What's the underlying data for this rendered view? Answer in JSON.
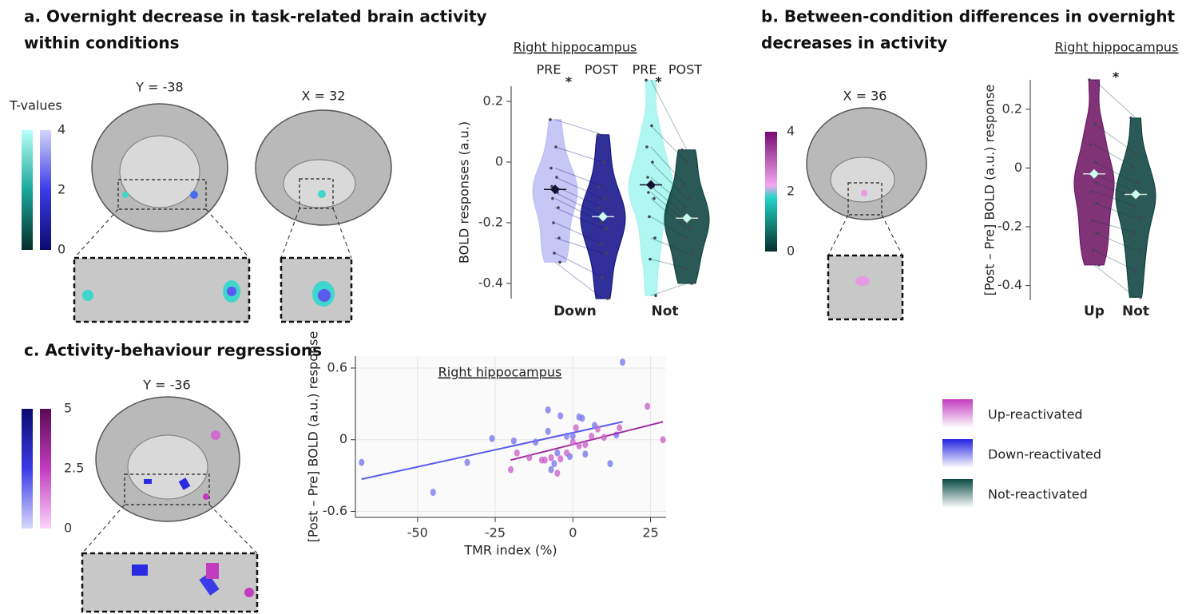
{
  "panels": {
    "a": {
      "title": [
        "a. Overnight decrease in task-related brain activity",
        "within conditions"
      ],
      "slices": [
        "Y = -38",
        "X = 32"
      ],
      "colorbar": {
        "label": "T-values",
        "range": [
          0,
          4
        ],
        "ticks": [
          0,
          2,
          4
        ]
      }
    },
    "b": {
      "title": [
        "b. Between-condition differences in overnight",
        "decreases in activity"
      ],
      "slices": [
        "X = 36"
      ],
      "colorbar": {
        "range": [
          0,
          4
        ],
        "ticks": [
          0,
          2,
          4
        ]
      }
    },
    "c": {
      "title": [
        "c. Activity-behaviour regressions"
      ],
      "slices": [
        "Y = -36"
      ],
      "colorbar": {
        "range": [
          0,
          5
        ],
        "ticks": [
          0,
          2.5,
          5
        ]
      }
    }
  },
  "legend": [
    {
      "name": "Up-reactivated",
      "color": "#c23cc0"
    },
    {
      "name": "Down-reactivated",
      "color": "#2323e0"
    },
    {
      "name": "Not-reactivated",
      "color": "#0a4a44"
    }
  ],
  "chart_data": [
    {
      "type": "violin",
      "subtitle": "Right hippocampus",
      "y_label": "BOLD responses (a.u.)",
      "ylim": [
        -0.45,
        0.25
      ],
      "yticks": [
        -0.4,
        -0.2,
        0,
        0.2
      ],
      "groups": [
        {
          "category": "Down",
          "significance": "*",
          "series": [
            {
              "name": "PRE",
              "color": "#bdbdf3",
              "mean": -0.09,
              "values": [
                0.14,
                0.05,
                -0.02,
                -0.05,
                -0.08,
                -0.1,
                -0.12,
                -0.15,
                -0.2,
                -0.25,
                -0.3,
                -0.33
              ]
            },
            {
              "name": "POST",
              "color": "#0c0c86",
              "mean": -0.18,
              "values": [
                0.09,
                0.0,
                -0.08,
                -0.12,
                -0.15,
                -0.18,
                -0.2,
                -0.22,
                -0.27,
                -0.3,
                -0.38,
                -0.45
              ]
            }
          ]
        },
        {
          "category": "Not",
          "significance": "*",
          "series": [
            {
              "name": "PRE",
              "color": "#a2f4ee",
              "mean": -0.075,
              "values": [
                0.27,
                0.12,
                0.05,
                0.0,
                -0.05,
                -0.08,
                -0.1,
                -0.12,
                -0.18,
                -0.25,
                -0.32,
                -0.44
              ]
            },
            {
              "name": "POST",
              "color": "#063c37",
              "mean": -0.185,
              "values": [
                0.04,
                0.0,
                -0.08,
                -0.12,
                -0.15,
                -0.18,
                -0.2,
                -0.22,
                -0.25,
                -0.3,
                -0.35,
                -0.4
              ]
            }
          ]
        }
      ]
    },
    {
      "type": "violin",
      "subtitle": "Right hippocampus",
      "y_label": "[Post – Pre] BOLD (a.u.) response",
      "ylim": [
        -0.45,
        0.3
      ],
      "yticks": [
        -0.4,
        -0.2,
        0,
        0.2
      ],
      "groups": [
        {
          "category": "Up",
          "significance": "*",
          "series": [
            {
              "color": "#6a0f5f",
              "mean": -0.02,
              "values": [
                0.3,
                0.15,
                0.08,
                0.02,
                -0.02,
                -0.05,
                -0.08,
                -0.12,
                -0.18,
                -0.22,
                -0.28,
                -0.33
              ]
            }
          ]
        },
        {
          "category": "Not",
          "series": [
            {
              "color": "#063c37",
              "mean": -0.09,
              "values": [
                0.17,
                0.05,
                0.0,
                -0.05,
                -0.08,
                -0.1,
                -0.13,
                -0.17,
                -0.22,
                -0.28,
                -0.35,
                -0.44
              ]
            }
          ]
        }
      ]
    },
    {
      "type": "scatter",
      "subtitle": "Right hippocampus",
      "x_label": "TMR index (%)",
      "y_label": "[Post – Pre] BOLD (a.u.) response",
      "xlim": [
        -70,
        30
      ],
      "xticks": [
        -50,
        -25,
        0,
        25
      ],
      "ylim": [
        -0.65,
        0.7
      ],
      "yticks": [
        -0.6,
        0,
        0.6
      ],
      "grid": true,
      "series": [
        {
          "color": "#7a7af0",
          "line_color": "#5a5af0",
          "x": [
            -68,
            -45,
            -34,
            -26,
            -19,
            -12,
            -8,
            -8,
            -7,
            -6,
            -5,
            -4,
            -2,
            -1,
            0,
            2,
            3,
            4,
            7,
            12,
            14,
            16
          ],
          "values": [
            -0.19,
            -0.44,
            -0.19,
            0.01,
            -0.01,
            -0.02,
            0.25,
            0.07,
            -0.25,
            -0.2,
            -0.11,
            0.2,
            0.03,
            -0.14,
            0.03,
            0.19,
            0.18,
            -0.12,
            0.12,
            -0.2,
            0.04,
            0.65
          ],
          "fit": {
            "x": [
              -68,
              16
            ],
            "y": [
              -0.33,
              0.15
            ]
          }
        },
        {
          "color": "#cc66cc",
          "line_color": "#a02aa0",
          "x": [
            -20,
            -18,
            -14,
            -10,
            -9,
            -7,
            -5,
            -4,
            -2,
            0,
            1,
            2,
            4,
            6,
            8,
            10,
            15,
            24,
            29
          ],
          "values": [
            -0.25,
            -0.11,
            -0.15,
            -0.17,
            -0.17,
            -0.15,
            -0.28,
            -0.16,
            -0.11,
            -0.02,
            0.1,
            -0.05,
            -0.04,
            0.03,
            0.09,
            0.02,
            0.1,
            0.28,
            0.0
          ],
          "fit": {
            "x": [
              -20,
              29
            ],
            "y": [
              -0.17,
              0.15
            ]
          }
        }
      ]
    }
  ]
}
